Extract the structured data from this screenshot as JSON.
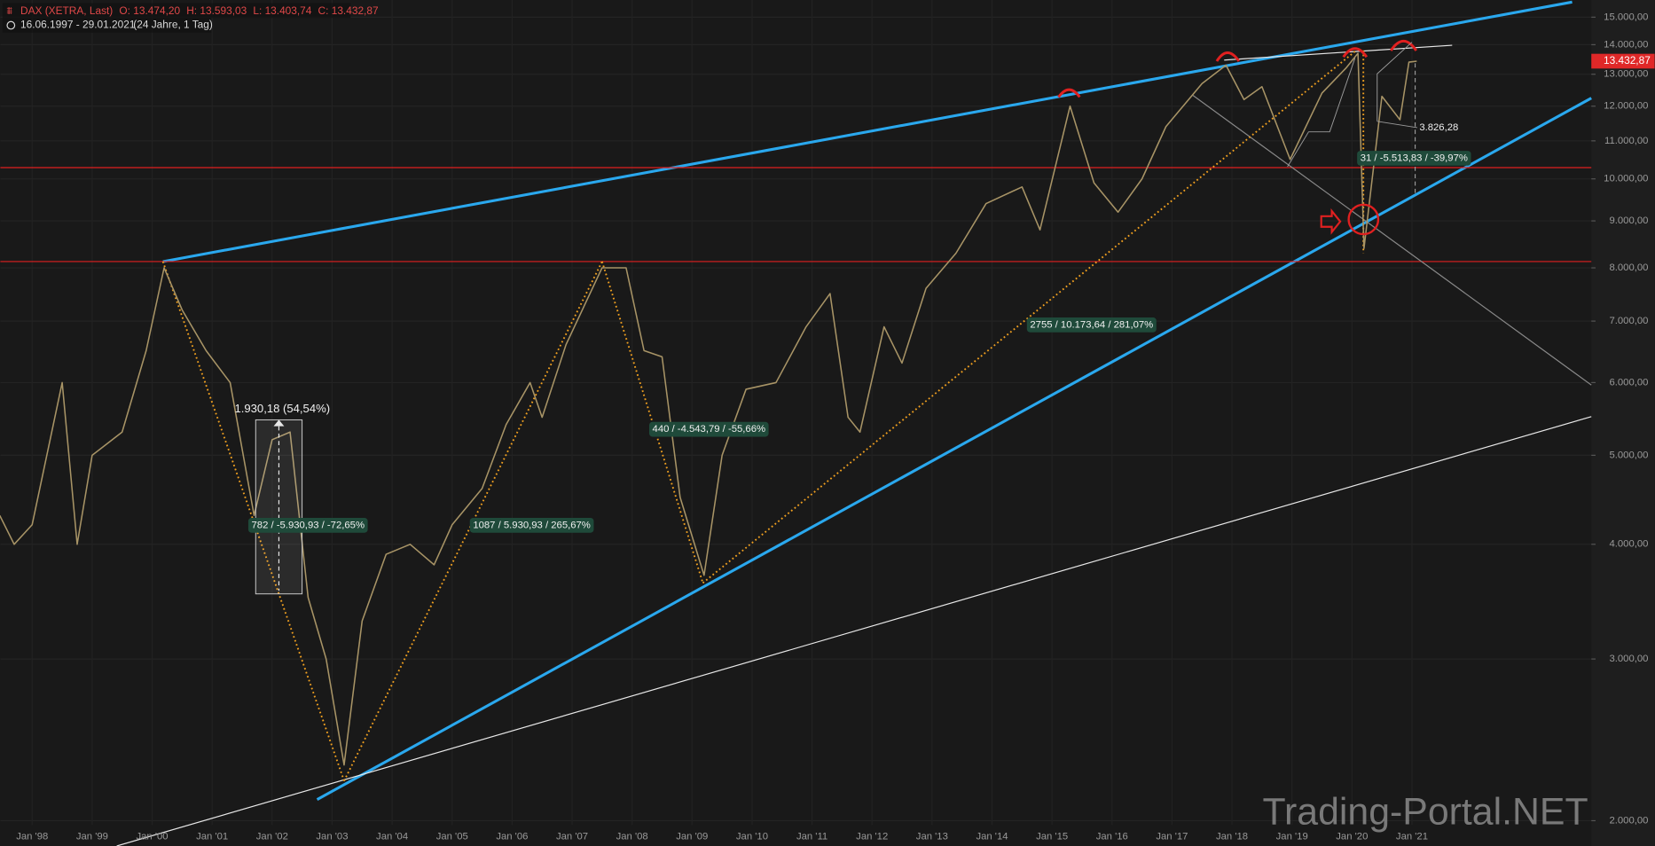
{
  "chart_data": {
    "type": "line",
    "title": "DAX (XETRA, Last)",
    "ohlc": [
      "O: 13.474,20",
      "H: 13.593,03",
      "L: 13.403,74",
      "C: 13.432,87"
    ],
    "period": "16.06.1997 - 29.01.2021",
    "period_note": "(24 Jahre, 1 Tag)",
    "watermark": "Trading-Portal.NET",
    "log_scale": true,
    "grid": true,
    "color": "#a89466",
    "xlim": [
      1997.47,
      2023.99
    ],
    "ylim": [
      1877,
      15660
    ],
    "xticks": [
      {
        "value": 1998,
        "label": "Jan '98"
      },
      {
        "value": 1999,
        "label": "Jan '99"
      },
      {
        "value": 2000,
        "label": "Jan '00"
      },
      {
        "value": 2001,
        "label": "Jan '01"
      },
      {
        "value": 2002,
        "label": "Jan '02"
      },
      {
        "value": 2003,
        "label": "Jan '03"
      },
      {
        "value": 2004,
        "label": "Jan '04"
      },
      {
        "value": 2005,
        "label": "Jan '05"
      },
      {
        "value": 2006,
        "label": "Jan '06"
      },
      {
        "value": 2007,
        "label": "Jan '07"
      },
      {
        "value": 2008,
        "label": "Jan '08"
      },
      {
        "value": 2009,
        "label": "Jan '09"
      },
      {
        "value": 2010,
        "label": "Jan '10"
      },
      {
        "value": 2011,
        "label": "Jan '11"
      },
      {
        "value": 2012,
        "label": "Jan '12"
      },
      {
        "value": 2013,
        "label": "Jan '13"
      },
      {
        "value": 2014,
        "label": "Jan '14"
      },
      {
        "value": 2015,
        "label": "Jan '15"
      },
      {
        "value": 2016,
        "label": "Jan '16"
      },
      {
        "value": 2017,
        "label": "Jan '17"
      },
      {
        "value": 2018,
        "label": "Jan '18"
      },
      {
        "value": 2019,
        "label": "Jan '19"
      },
      {
        "value": 2020,
        "label": "Jan '20"
      },
      {
        "value": 2021,
        "label": "Jan '21"
      }
    ],
    "yticks": [
      {
        "value": 2000,
        "label": "2.000,00"
      },
      {
        "value": 3000,
        "label": "3.000,00"
      },
      {
        "value": 4000,
        "label": "4.000,00"
      },
      {
        "value": 5000,
        "label": "5.000,00"
      },
      {
        "value": 6000,
        "label": "6.000,00"
      },
      {
        "value": 7000,
        "label": "7.000,00"
      },
      {
        "value": 8000,
        "label": "8.000,00"
      },
      {
        "value": 9000,
        "label": "9.000,00"
      },
      {
        "value": 10000,
        "label": "10.000,00"
      },
      {
        "value": 11000,
        "label": "11.000,00"
      },
      {
        "value": 12000,
        "label": "12.000,00"
      },
      {
        "value": 13000,
        "label": "13.000,00"
      },
      {
        "value": 14000,
        "label": "14.000,00"
      },
      {
        "value": 15000,
        "label": "15.000,00"
      }
    ],
    "x": [
      1997.46,
      1997.7,
      1998.0,
      1998.5,
      1998.75,
      1999.0,
      1999.5,
      1999.9,
      2000.2,
      2000.5,
      2000.9,
      2001.3,
      2001.7,
      2002.0,
      2002.3,
      2002.6,
      2002.9,
      2003.2,
      2003.5,
      2003.9,
      2004.3,
      2004.7,
      2005.0,
      2005.5,
      2005.9,
      2006.3,
      2006.5,
      2006.9,
      2007.5,
      2007.9,
      2008.2,
      2008.5,
      2008.8,
      2009.2,
      2009.5,
      2009.9,
      2010.4,
      2010.9,
      2011.3,
      2011.6,
      2011.8,
      2012.2,
      2012.5,
      2012.9,
      2013.4,
      2013.9,
      2014.5,
      2014.8,
      2015.3,
      2015.7,
      2016.1,
      2016.5,
      2016.9,
      2017.5,
      2017.9,
      2018.2,
      2018.5,
      2018.97,
      2019.5,
      2019.9,
      2020.1,
      2020.2,
      2020.5,
      2020.8,
      2020.95,
      2021.08
    ],
    "values": [
      4300,
      4000,
      4200,
      6000,
      4000,
      5000,
      5300,
      6500,
      8000,
      7200,
      6500,
      6000,
      4300,
      5200,
      5300,
      3500,
      3000,
      2300,
      3300,
      3900,
      4000,
      3800,
      4200,
      4600,
      5400,
      6000,
      5500,
      6600,
      8000,
      8000,
      6500,
      6400,
      4500,
      3700,
      5000,
      5900,
      6000,
      6900,
      7500,
      5500,
      5300,
      6900,
      6300,
      7600,
      8300,
      9400,
      9800,
      8800,
      12000,
      9900,
      9200,
      10000,
      11400,
      12700,
      13300,
      12200,
      12600,
      10500,
      12400,
      13200,
      13700,
      8400,
      12300,
      11600,
      13400,
      13432.87
    ],
    "last": {
      "value": 13432.87,
      "label": "13.432,87"
    },
    "trendlines": [
      {
        "color": "#2aa8ee",
        "style": "thick",
        "x": [
          2000.18,
          2023.67
        ],
        "values": [
          8127,
          15580
        ]
      },
      {
        "color": "#2aa8ee",
        "style": "thick",
        "x": [
          2002.75,
          2023.99
        ],
        "values": [
          2109,
          12245
        ]
      },
      {
        "color": "#e8e8e8",
        "style": "thin",
        "x": [
          1999.41,
          2023.99
        ],
        "values": [
          1877,
          5509
        ]
      },
      {
        "color": "#e02020",
        "style": "thin",
        "x": [
          1997.47,
          2023.99
        ],
        "values": [
          8127,
          8127
        ]
      },
      {
        "color": "#e02020",
        "style": "thin",
        "x": [
          1997.47,
          2023.99
        ],
        "values": [
          10287,
          10287
        ]
      },
      {
        "color": "#8a8a8a",
        "style": "thin",
        "x": [
          2017.34,
          2023.99
        ],
        "values": [
          12340,
          5963
        ]
      },
      {
        "color": "#e8e8e8",
        "style": "thin",
        "x": [
          2017.87,
          2021.67
        ],
        "values": [
          13470,
          13980
        ]
      },
      {
        "color": "#f0a020",
        "style": "dotted",
        "x": [
          2000.18,
          2003.2
        ],
        "values": [
          8127,
          2210
        ]
      },
      {
        "color": "#f0a020",
        "style": "dotted",
        "x": [
          2003.2,
          2007.5
        ],
        "values": [
          2210,
          8127
        ]
      },
      {
        "color": "#f0a020",
        "style": "dotted",
        "x": [
          2007.5,
          2009.18
        ],
        "values": [
          8127,
          3630
        ]
      },
      {
        "color": "#f0a020",
        "style": "dotted",
        "x": [
          2009.18,
          2020.07
        ],
        "values": [
          3630,
          13800
        ]
      },
      {
        "color": "#f0a020",
        "style": "dotted",
        "x": [
          2020.19,
          2020.19
        ],
        "values": [
          13800,
          8300
        ]
      }
    ],
    "annotations": [
      {
        "text": "1.930,18 (54,54%)",
        "boxed": false
      },
      {
        "text": "782 / -5.930,93 / -72,65%",
        "boxed": true
      },
      {
        "text": "1087 / 5.930,93 / 265,67%",
        "boxed": true
      },
      {
        "text": "440 / -4.543,79 / -55,66%",
        "boxed": true
      },
      {
        "text": "2755 / 10.173,64 / 281,07%",
        "boxed": true
      },
      {
        "text": "31 / -5.513,83 / -39,97%",
        "boxed": true
      },
      {
        "text": "3.826,28",
        "boxed": false
      }
    ]
  }
}
